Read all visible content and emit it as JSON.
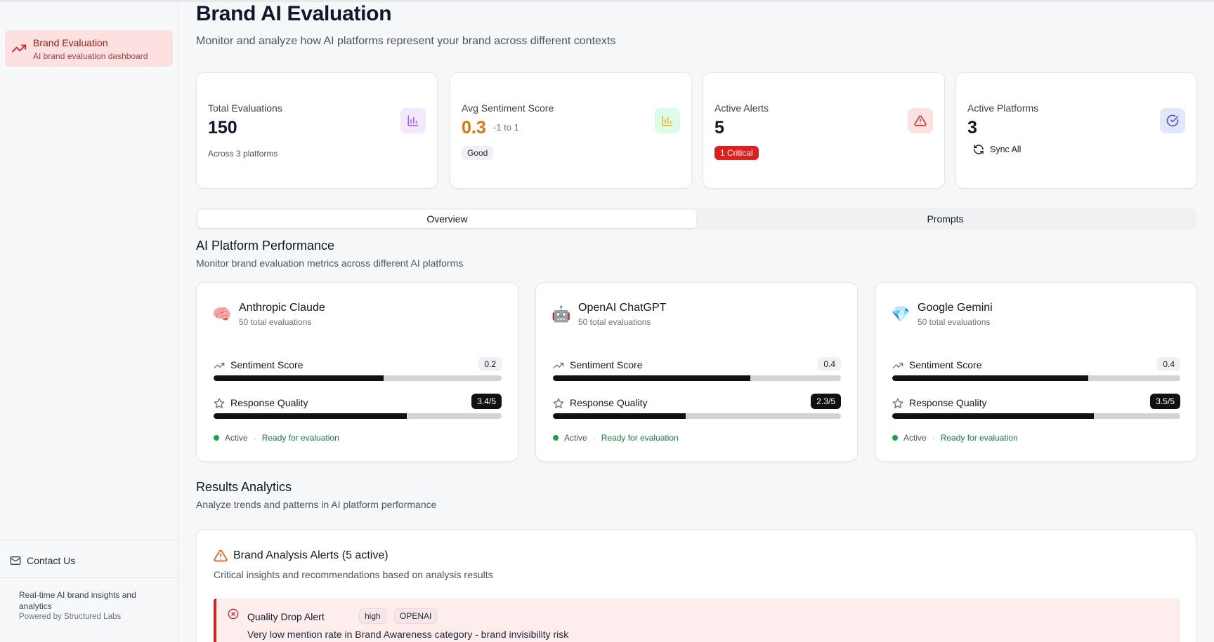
{
  "sidebar": {
    "nav_title": "Brand Evaluation",
    "nav_subtitle": "AI brand evaluation dashboard",
    "contact": "Contact Us",
    "footer_text": "Real-time AI brand insights and analytics",
    "footer_powered": "Powered by Structured Labs"
  },
  "header": {
    "title": "Brand AI Evaluation",
    "subtitle": "Monitor and analyze how AI platforms represent your brand across different contexts"
  },
  "stats": {
    "total": {
      "label": "Total Evaluations",
      "value": "150",
      "note": "Across 3 platforms",
      "icon": "bar-chart-icon",
      "color": "#a855f7"
    },
    "sentiment": {
      "label": "Avg Sentiment Score",
      "value": "0.3",
      "range": "-1 to 1",
      "badge": "Good",
      "icon": "bar-chart-icon",
      "color": "#eab308"
    },
    "alerts": {
      "label": "Active Alerts",
      "value": "5",
      "badge": "1 Critical",
      "icon": "alert-triangle-icon",
      "color": "#dc2626"
    },
    "platforms": {
      "label": "Active Platforms",
      "value": "3",
      "action": "Sync All",
      "icon": "check-circle-icon",
      "color": "#4f46e5"
    }
  },
  "tabs": {
    "overview": "Overview",
    "prompts": "Prompts"
  },
  "performance": {
    "title": "AI Platform Performance",
    "subtitle": "Monitor brand evaluation metrics across different AI platforms",
    "sentiment_label": "Sentiment Score",
    "quality_label": "Response Quality",
    "status_active": "Active",
    "status_ready": "Ready for evaluation",
    "platforms": [
      {
        "emoji": "🧠",
        "name": "Anthropic Claude",
        "count": "50 total evaluations",
        "sentiment": "0.2",
        "sentiment_fill": 0.59,
        "quality": "3.4/5",
        "quality_fill": 0.67
      },
      {
        "emoji": "🤖",
        "name": "OpenAI ChatGPT",
        "count": "50 total evaluations",
        "sentiment": "0.4",
        "sentiment_fill": 0.685,
        "quality": "2.3/5",
        "quality_fill": 0.46
      },
      {
        "emoji": "💎",
        "name": "Google Gemini",
        "count": "50 total evaluations",
        "sentiment": "0.4",
        "sentiment_fill": 0.68,
        "quality": "3.5/5",
        "quality_fill": 0.7
      }
    ]
  },
  "analytics": {
    "title": "Results Analytics",
    "subtitle": "Analyze trends and patterns in AI platform performance"
  },
  "alerts_card": {
    "title": "Brand Analysis Alerts (5 active)",
    "subtitle": "Critical insights and recommendations based on analysis results",
    "items": [
      {
        "title": "Quality Drop Alert",
        "severity": "high",
        "platform": "OPENAI",
        "description": "Very low mention rate in Brand Awareness category - brand invisibility risk"
      }
    ]
  }
}
